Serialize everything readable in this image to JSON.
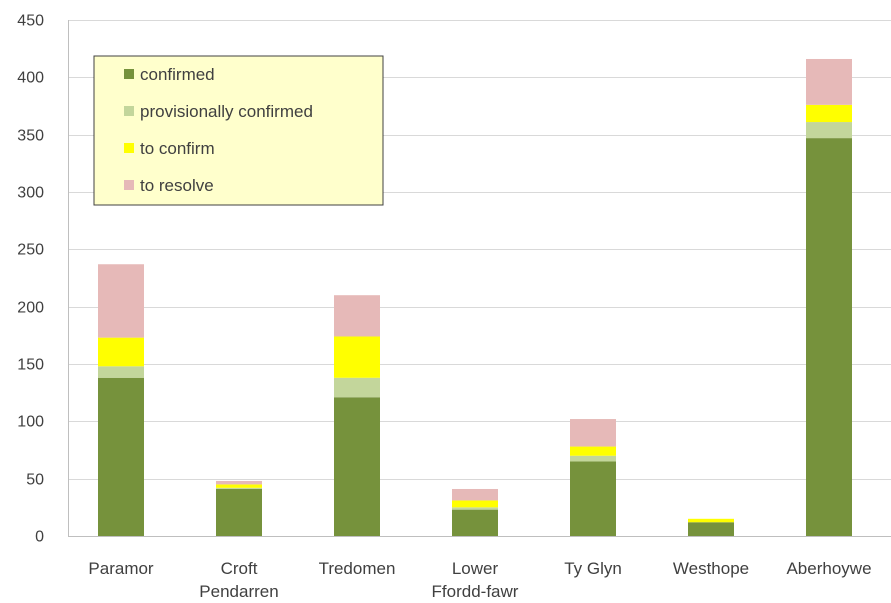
{
  "chart_data": {
    "type": "bar",
    "stacked": true,
    "title": "",
    "xlabel": "",
    "ylabel": "",
    "ylim": [
      0,
      450
    ],
    "yticks": [
      0,
      50,
      100,
      150,
      200,
      250,
      300,
      350,
      400,
      450
    ],
    "grid": true,
    "legend_position": "top-left",
    "categories": [
      [
        "Paramor"
      ],
      [
        "Croft",
        "Pendarren"
      ],
      [
        "Tredomen"
      ],
      [
        "Lower",
        "Ffordd-fawr"
      ],
      [
        "Ty Glyn"
      ],
      [
        "Westhope"
      ],
      [
        "Aberhoywe"
      ]
    ],
    "series": [
      {
        "name": "confirmed",
        "color": "#76923c",
        "values": [
          138,
          41,
          121,
          23,
          65,
          12,
          347
        ]
      },
      {
        "name": "provisionally confirmed",
        "color": "#c3d69b",
        "values": [
          10,
          1,
          17,
          2,
          5,
          0,
          14
        ]
      },
      {
        "name": "to confirm",
        "color": "#ffff00",
        "values": [
          25,
          3,
          36,
          6,
          8,
          3,
          15
        ]
      },
      {
        "name": "to resolve",
        "color": "#e6b9b8",
        "values": [
          64,
          3,
          36,
          10,
          24,
          0,
          40
        ]
      }
    ]
  }
}
